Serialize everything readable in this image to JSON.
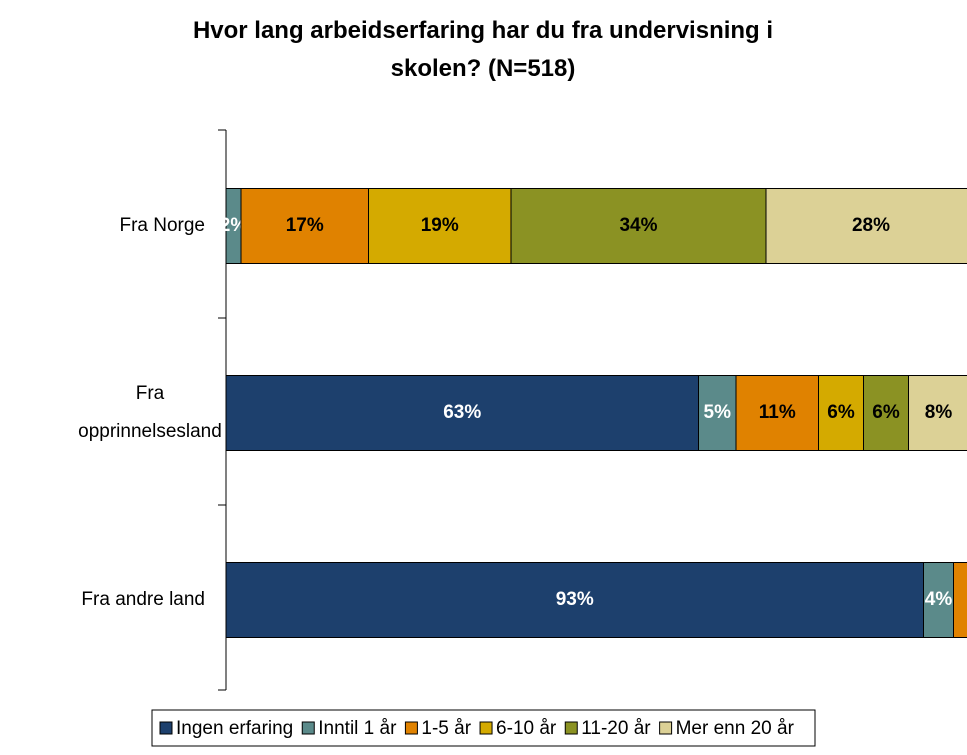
{
  "chart_data": {
    "type": "stacked_barh",
    "title": "Hvor lang arbeidserfaring har du fra undervisning i skolen? (N=518)",
    "categories": [
      "Fra Norge",
      "Fra opprinnelsesland",
      "Fra andre land"
    ],
    "xlim": [
      0,
      100
    ],
    "series": [
      {
        "name": "Ingen erfaring",
        "color": "#1d406d",
        "label_color": "#ffffff",
        "values": [
          0,
          63,
          93
        ],
        "value_labels": [
          null,
          "63%",
          "93%"
        ]
      },
      {
        "name": "Inntil 1 år",
        "color": "#5b8a8a",
        "label_color": "#ffffff",
        "values": [
          2,
          5,
          4
        ],
        "value_labels": [
          "2%",
          "5%",
          "4%"
        ]
      },
      {
        "name": "1-5 år",
        "color": "#e08200",
        "label_color": "#000000",
        "values": [
          17,
          11,
          2
        ],
        "value_labels": [
          "17%",
          "11%",
          null
        ]
      },
      {
        "name": "6-10 år",
        "color": "#d4aa00",
        "label_color": "#000000",
        "values": [
          19,
          6,
          1
        ],
        "value_labels": [
          "19%",
          "6%",
          null
        ]
      },
      {
        "name": "11-20 år",
        "color": "#8b9223",
        "label_color": "#000000",
        "values": [
          34,
          6,
          0
        ],
        "value_labels": [
          "34%",
          "6%",
          null
        ]
      },
      {
        "name": "Mer enn 20 år",
        "color": "#dcd196",
        "label_color": "#000000",
        "values": [
          28,
          8,
          0
        ],
        "value_labels": [
          "28%",
          "8%",
          null
        ]
      }
    ],
    "legend": "bottom"
  }
}
